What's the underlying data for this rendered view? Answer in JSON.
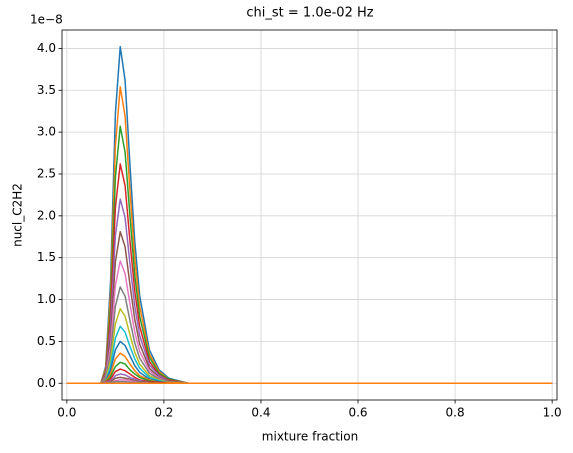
{
  "chart_data": {
    "type": "line",
    "title": "chi_st = 1.0e-02 Hz",
    "xlabel": "mixture fraction",
    "ylabel": "nucl_C2H2",
    "y_offset_label": "1e−8",
    "grid": true,
    "xlim": [
      -0.01,
      1.01
    ],
    "xticks": [
      {
        "value": 0,
        "label": "0.0"
      },
      0.2,
      0.4,
      0.6,
      0.8,
      {
        "value": 1,
        "label": "1.0"
      }
    ],
    "ylim": [
      -0.2,
      4.22
    ],
    "yticks": [
      {
        "value": 0,
        "label": "0.0"
      },
      0.5,
      {
        "value": 1,
        "label": "1.0"
      },
      1.5,
      {
        "value": 2,
        "label": "2.0"
      },
      2.5,
      {
        "value": 3,
        "label": "3.0"
      },
      3.5,
      {
        "value": 4,
        "label": "4.0"
      }
    ],
    "x": [
      0,
      0.07,
      0.08,
      0.09,
      0.1,
      0.11,
      0.12,
      0.13,
      0.14,
      0.15,
      0.17,
      0.19,
      0.21,
      0.25,
      1.0
    ],
    "series": [
      {
        "color": "#1f77b4",
        "values": [
          0,
          0,
          0.2,
          1.21,
          3.22,
          4.02,
          3.62,
          2.61,
          1.69,
          1.05,
          0.4,
          0.16,
          0.06,
          0,
          0
        ]
      },
      {
        "color": "#ff7f0e",
        "values": [
          0,
          0,
          0.18,
          1.06,
          2.83,
          3.54,
          3.19,
          2.3,
          1.49,
          0.92,
          0.35,
          0.14,
          0.05,
          0,
          0
        ]
      },
      {
        "color": "#2ca02c",
        "values": [
          0,
          0,
          0.15,
          0.92,
          2.46,
          3.07,
          2.76,
          2,
          1.29,
          0.8,
          0.31,
          0.12,
          0.05,
          0,
          0
        ]
      },
      {
        "color": "#d62728",
        "values": [
          0,
          0,
          0.13,
          0.79,
          2.1,
          2.62,
          2.36,
          1.7,
          1.1,
          0.68,
          0.26,
          0.1,
          0.04,
          0,
          0
        ]
      },
      {
        "color": "#9467bd",
        "values": [
          0,
          0,
          0.11,
          0.66,
          1.76,
          2.2,
          1.98,
          1.43,
          0.92,
          0.57,
          0.22,
          0.09,
          0.03,
          0,
          0
        ]
      },
      {
        "color": "#8c564b",
        "values": [
          0,
          0,
          0.09,
          0.54,
          1.45,
          1.81,
          1.63,
          1.18,
          0.76,
          0.47,
          0.18,
          0.07,
          0.03,
          0,
          0
        ]
      },
      {
        "color": "#e377c2",
        "values": [
          0,
          0,
          0.07,
          0.44,
          1.17,
          1.46,
          1.31,
          0.95,
          0.61,
          0.38,
          0.15,
          0.06,
          0.02,
          0,
          0
        ]
      },
      {
        "color": "#7f7f7f",
        "values": [
          0,
          0,
          0.06,
          0.35,
          0.92,
          1.15,
          1.04,
          0.75,
          0.48,
          0.3,
          0.12,
          0.05,
          0.02,
          0,
          0
        ]
      },
      {
        "color": "#bcbd22",
        "values": [
          0,
          0,
          0.04,
          0.27,
          0.71,
          0.89,
          0.8,
          0.58,
          0.37,
          0.23,
          0.09,
          0.04,
          0.01,
          0,
          0
        ]
      },
      {
        "color": "#17becf",
        "values": [
          0,
          0,
          0.03,
          0.2,
          0.54,
          0.68,
          0.61,
          0.44,
          0.29,
          0.18,
          0.07,
          0.03,
          0.01,
          0,
          0
        ]
      },
      {
        "color": "#1f77b4",
        "values": [
          0,
          0,
          0.03,
          0.15,
          0.4,
          0.5,
          0.45,
          0.33,
          0.21,
          0.13,
          0.05,
          0.02,
          0.01,
          0,
          0
        ]
      },
      {
        "color": "#ff7f0e",
        "values": [
          0,
          0,
          0.02,
          0.11,
          0.29,
          0.36,
          0.32,
          0.23,
          0.15,
          0.09,
          0.04,
          0.01,
          0.01,
          0,
          0
        ]
      },
      {
        "color": "#2ca02c",
        "values": [
          0,
          0,
          0.01,
          0.08,
          0.2,
          0.25,
          0.23,
          0.16,
          0.11,
          0.07,
          0.03,
          0.01,
          0,
          0,
          0
        ]
      },
      {
        "color": "#d62728",
        "values": [
          0,
          0,
          0.01,
          0.05,
          0.14,
          0.17,
          0.15,
          0.11,
          0.07,
          0.04,
          0.02,
          0.01,
          0,
          0,
          0
        ]
      },
      {
        "color": "#9467bd",
        "values": [
          0,
          0,
          0.01,
          0.03,
          0.09,
          0.11,
          0.1,
          0.07,
          0.05,
          0.03,
          0.01,
          0,
          0,
          0,
          0
        ]
      },
      {
        "color": "#8c564b",
        "values": [
          0,
          0,
          0,
          0.02,
          0.06,
          0.07,
          0.06,
          0.05,
          0.03,
          0.02,
          0.01,
          0,
          0,
          0,
          0
        ]
      },
      {
        "color": "#e377c2",
        "values": [
          0,
          0,
          0,
          0.01,
          0.03,
          0.04,
          0.04,
          0.03,
          0.02,
          0.01,
          0,
          0,
          0,
          0,
          0
        ]
      },
      {
        "color": "#7f7f7f",
        "values": [
          0,
          0,
          0,
          0.01,
          0.02,
          0.02,
          0.02,
          0.01,
          0.01,
          0.01,
          0,
          0,
          0,
          0,
          0
        ]
      },
      {
        "color": "#ff7f0e",
        "values": [
          0,
          0,
          0,
          0,
          0,
          0,
          0,
          0,
          0,
          0,
          0,
          0,
          0,
          0,
          0
        ]
      }
    ]
  }
}
